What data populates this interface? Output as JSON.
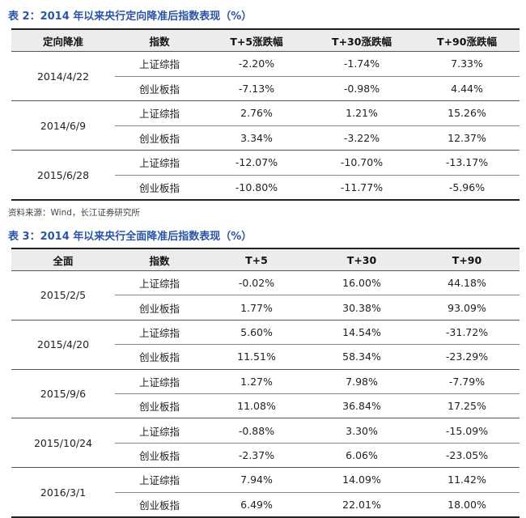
{
  "table2": {
    "caption": "表 2：2014 年以来央行定向降准后指数表现（%）",
    "headers": [
      "定向降准",
      "指数",
      "T+5涨跌幅",
      "T+30涨跌幅",
      "T+90涨跌幅"
    ],
    "groups": [
      {
        "date": "2014/4/22",
        "rows": [
          {
            "index": "上证综指",
            "t5": "-2.20%",
            "t30": "-1.74%",
            "t90": "7.33%"
          },
          {
            "index": "创业板指",
            "t5": "-7.13%",
            "t30": "-0.98%",
            "t90": "4.44%"
          }
        ]
      },
      {
        "date": "2014/6/9",
        "rows": [
          {
            "index": "上证综指",
            "t5": "2.76%",
            "t30": "1.21%",
            "t90": "15.26%"
          },
          {
            "index": "创业板指",
            "t5": "3.34%",
            "t30": "-3.22%",
            "t90": "12.37%"
          }
        ]
      },
      {
        "date": "2015/6/28",
        "rows": [
          {
            "index": "上证综指",
            "t5": "-12.07%",
            "t30": "-10.70%",
            "t90": "-13.17%"
          },
          {
            "index": "创业板指",
            "t5": "-10.80%",
            "t30": "-11.77%",
            "t90": "-5.96%"
          }
        ]
      }
    ]
  },
  "source": "资料来源：Wind，长江证券研究所",
  "table3": {
    "caption": "表 3：2014 年以来央行全面降准后指数表现（%）",
    "headers": [
      "全面",
      "指数",
      "T+5",
      "T+30",
      "T+90"
    ],
    "groups": [
      {
        "date": "2015/2/5",
        "rows": [
          {
            "index": "上证综指",
            "t5": "-0.02%",
            "t30": "16.00%",
            "t90": "44.18%"
          },
          {
            "index": "创业板指",
            "t5": "1.77%",
            "t30": "30.38%",
            "t90": "93.09%"
          }
        ]
      },
      {
        "date": "2015/4/20",
        "rows": [
          {
            "index": "上证综指",
            "t5": "5.60%",
            "t30": "14.54%",
            "t90": "-31.72%"
          },
          {
            "index": "创业板指",
            "t5": "11.51%",
            "t30": "58.34%",
            "t90": "-23.29%"
          }
        ]
      },
      {
        "date": "2015/9/6",
        "rows": [
          {
            "index": "上证综指",
            "t5": "1.27%",
            "t30": "7.98%",
            "t90": "-7.79%"
          },
          {
            "index": "创业板指",
            "t5": "11.08%",
            "t30": "36.84%",
            "t90": "17.25%"
          }
        ]
      },
      {
        "date": "2015/10/24",
        "rows": [
          {
            "index": "上证综指",
            "t5": "-0.88%",
            "t30": "3.30%",
            "t90": "-15.09%"
          },
          {
            "index": "创业板指",
            "t5": "-2.37%",
            "t30": "6.06%",
            "t90": "-23.05%"
          }
        ]
      },
      {
        "date": "2016/3/1",
        "rows": [
          {
            "index": "上证综指",
            "t5": "7.94%",
            "t30": "14.09%",
            "t90": "11.42%"
          },
          {
            "index": "创业板指",
            "t5": "6.49%",
            "t30": "22.01%",
            "t90": "18.00%"
          }
        ]
      }
    ]
  },
  "colors": {
    "caption": "#2a55a5",
    "header_bg": "#ececec",
    "rule": "#222222"
  }
}
